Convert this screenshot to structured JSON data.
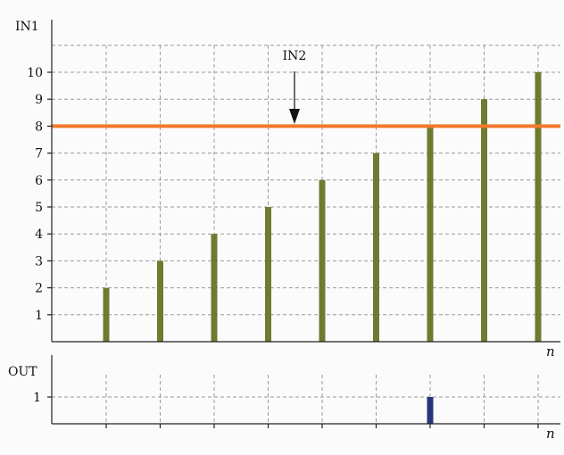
{
  "chart_data": [
    {
      "type": "bar",
      "ylabel": "IN1",
      "xlabel": "n",
      "ylim": [
        0,
        11
      ],
      "yticks": [
        1,
        2,
        3,
        4,
        5,
        6,
        7,
        8,
        9,
        10
      ],
      "x": [
        1,
        2,
        3,
        4,
        5,
        6,
        7,
        8,
        9
      ],
      "values": [
        2,
        3,
        4,
        5,
        6,
        7,
        8,
        9,
        10
      ],
      "grid": true,
      "threshold": {
        "label": "IN2",
        "value": 8,
        "color": "#f2782a"
      },
      "bar_color": "#6e7b30"
    },
    {
      "type": "bar",
      "ylabel": "OUT",
      "xlabel": "n",
      "yticks": [
        1
      ],
      "x": [
        1,
        2,
        3,
        4,
        5,
        6,
        7,
        8,
        9
      ],
      "values": [
        0,
        0,
        0,
        0,
        0,
        0,
        1,
        0,
        0
      ],
      "grid": true,
      "bar_color": "#27357a"
    }
  ]
}
